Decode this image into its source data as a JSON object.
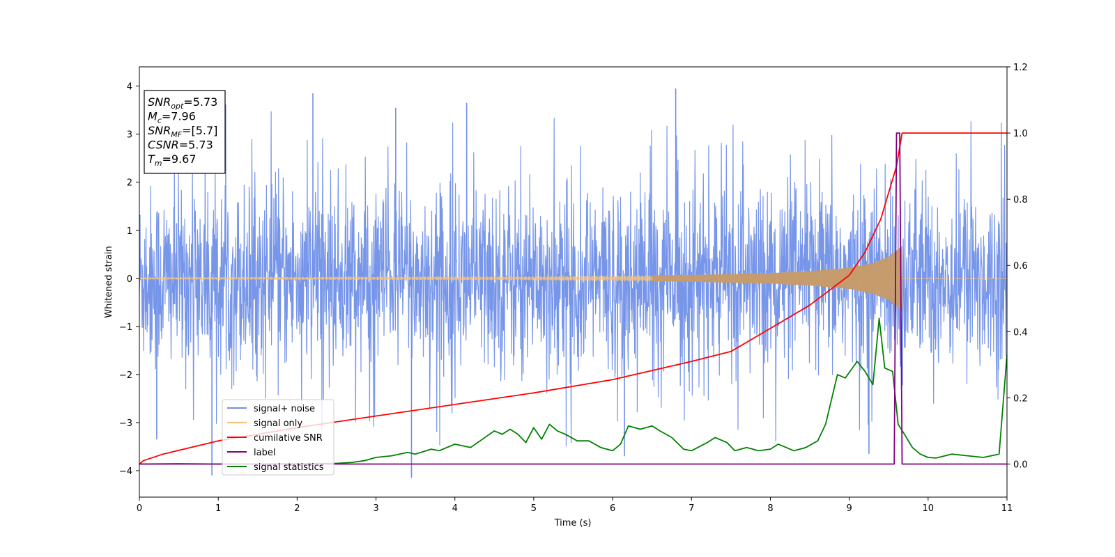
{
  "chart_data": {
    "type": "line",
    "xlabel": "Time (s)",
    "ylabel": "Whitened strain",
    "xlim": [
      0,
      11
    ],
    "ylim_left": [
      -4.55,
      4.4
    ],
    "ylim_right": [
      -0.1,
      1.2
    ],
    "x_ticks": [
      0,
      1,
      2,
      3,
      4,
      5,
      6,
      7,
      8,
      9,
      10,
      11
    ],
    "y_ticks_left": [
      -4,
      -3,
      -2,
      -1,
      0,
      1,
      2,
      3,
      4
    ],
    "y_ticks_right": [
      0.0,
      0.2,
      0.4,
      0.6,
      0.8,
      1.0,
      1.2
    ],
    "annotation": {
      "lines": [
        {
          "var": "SNR",
          "sub": "opt",
          "value": "=5.73"
        },
        {
          "var": "M",
          "sub": "c",
          "value": "=7.96"
        },
        {
          "var": "SNR",
          "sub": "MF",
          "value": "=[5.7]"
        },
        {
          "var": "CSNR",
          "sub": "",
          "value": "=5.73"
        },
        {
          "var": "T",
          "sub": "m",
          "value": "=9.67"
        }
      ]
    },
    "legend": {
      "position": "lower-left",
      "entries": [
        {
          "label": "signal+ noise",
          "color": "#7090e8"
        },
        {
          "label": "signal only",
          "color": "#f5c27a"
        },
        {
          "label": "cumilative SNR",
          "color": "#ff0000"
        },
        {
          "label": "label",
          "color": "#800080"
        },
        {
          "label": "signal statistics",
          "color": "#008000"
        }
      ]
    },
    "series": [
      {
        "name": "signal+ noise",
        "axis": "left",
        "kind": "noise",
        "amplitude_envelope": [
          -4.1,
          4.0
        ],
        "peaks": [
          {
            "x": 2.2,
            "y": 3.85
          },
          {
            "x": 3.25,
            "y": 3.55
          },
          {
            "x": 4.15,
            "y": 3.65
          },
          {
            "x": 6.8,
            "y": 3.95
          },
          {
            "x": 0.92,
            "y": -4.1
          },
          {
            "x": 3.45,
            "y": -4.15
          },
          {
            "x": 6.15,
            "y": -3.7
          },
          {
            "x": 9.25,
            "y": -3.65
          },
          {
            "x": 0.22,
            "y": -3.35
          }
        ]
      },
      {
        "name": "signal only",
        "axis": "left",
        "kind": "chirp",
        "t_merger": 9.67,
        "envelope_points": [
          [
            0,
            0.02
          ],
          [
            5,
            0.04
          ],
          [
            7,
            0.07
          ],
          [
            8,
            0.11
          ],
          [
            8.5,
            0.15
          ],
          [
            9.0,
            0.22
          ],
          [
            9.3,
            0.32
          ],
          [
            9.5,
            0.45
          ],
          [
            9.6,
            0.58
          ],
          [
            9.67,
            0.68
          ]
        ]
      },
      {
        "name": "cumilative SNR",
        "axis": "right",
        "points": [
          [
            0,
            0.0
          ],
          [
            0.05,
            0.01
          ],
          [
            0.3,
            0.03
          ],
          [
            1,
            0.07
          ],
          [
            2,
            0.11
          ],
          [
            3,
            0.145
          ],
          [
            4,
            0.18
          ],
          [
            5,
            0.215
          ],
          [
            6,
            0.255
          ],
          [
            7,
            0.31
          ],
          [
            7.5,
            0.34
          ],
          [
            8,
            0.41
          ],
          [
            8.5,
            0.48
          ],
          [
            9,
            0.57
          ],
          [
            9.2,
            0.64
          ],
          [
            9.4,
            0.74
          ],
          [
            9.5,
            0.82
          ],
          [
            9.6,
            0.9
          ],
          [
            9.67,
            1.0
          ],
          [
            11,
            1.0
          ]
        ]
      },
      {
        "name": "label",
        "axis": "right",
        "points": [
          [
            0,
            0.0
          ],
          [
            9.57,
            0.0
          ],
          [
            9.6,
            1.0
          ],
          [
            9.64,
            1.0
          ],
          [
            9.67,
            0.0
          ],
          [
            11,
            0.0
          ]
        ]
      },
      {
        "name": "signal statistics",
        "axis": "right",
        "points": [
          [
            0,
            0.0
          ],
          [
            0.5,
            0.001
          ],
          [
            1,
            0.0
          ],
          [
            1.5,
            0.0
          ],
          [
            2,
            0.001
          ],
          [
            2.5,
            0.002
          ],
          [
            2.7,
            0.005
          ],
          [
            2.85,
            0.01
          ],
          [
            3.0,
            0.02
          ],
          [
            3.2,
            0.025
          ],
          [
            3.4,
            0.035
          ],
          [
            3.5,
            0.03
          ],
          [
            3.7,
            0.045
          ],
          [
            3.8,
            0.04
          ],
          [
            4.0,
            0.06
          ],
          [
            4.2,
            0.05
          ],
          [
            4.35,
            0.075
          ],
          [
            4.5,
            0.1
          ],
          [
            4.6,
            0.09
          ],
          [
            4.7,
            0.105
          ],
          [
            4.8,
            0.09
          ],
          [
            4.9,
            0.065
          ],
          [
            5.0,
            0.11
          ],
          [
            5.1,
            0.075
          ],
          [
            5.2,
            0.12
          ],
          [
            5.3,
            0.1
          ],
          [
            5.4,
            0.09
          ],
          [
            5.55,
            0.07
          ],
          [
            5.7,
            0.07
          ],
          [
            5.85,
            0.05
          ],
          [
            6.0,
            0.04
          ],
          [
            6.1,
            0.06
          ],
          [
            6.2,
            0.115
          ],
          [
            6.35,
            0.105
          ],
          [
            6.5,
            0.115
          ],
          [
            6.6,
            0.1
          ],
          [
            6.75,
            0.08
          ],
          [
            6.9,
            0.045
          ],
          [
            7.0,
            0.04
          ],
          [
            7.2,
            0.065
          ],
          [
            7.3,
            0.08
          ],
          [
            7.45,
            0.065
          ],
          [
            7.55,
            0.04
          ],
          [
            7.7,
            0.05
          ],
          [
            7.85,
            0.04
          ],
          [
            8.0,
            0.045
          ],
          [
            8.1,
            0.06
          ],
          [
            8.3,
            0.04
          ],
          [
            8.45,
            0.05
          ],
          [
            8.6,
            0.07
          ],
          [
            8.7,
            0.12
          ],
          [
            8.85,
            0.27
          ],
          [
            8.95,
            0.26
          ],
          [
            9.1,
            0.31
          ],
          [
            9.2,
            0.28
          ],
          [
            9.3,
            0.24
          ],
          [
            9.38,
            0.44
          ],
          [
            9.45,
            0.29
          ],
          [
            9.55,
            0.28
          ],
          [
            9.62,
            0.12
          ],
          [
            9.7,
            0.09
          ],
          [
            9.8,
            0.05
          ],
          [
            9.9,
            0.03
          ],
          [
            10.0,
            0.02
          ],
          [
            10.1,
            0.018
          ],
          [
            10.3,
            0.03
          ],
          [
            10.5,
            0.025
          ],
          [
            10.7,
            0.02
          ],
          [
            10.9,
            0.03
          ],
          [
            11.0,
            0.33
          ]
        ]
      }
    ]
  }
}
